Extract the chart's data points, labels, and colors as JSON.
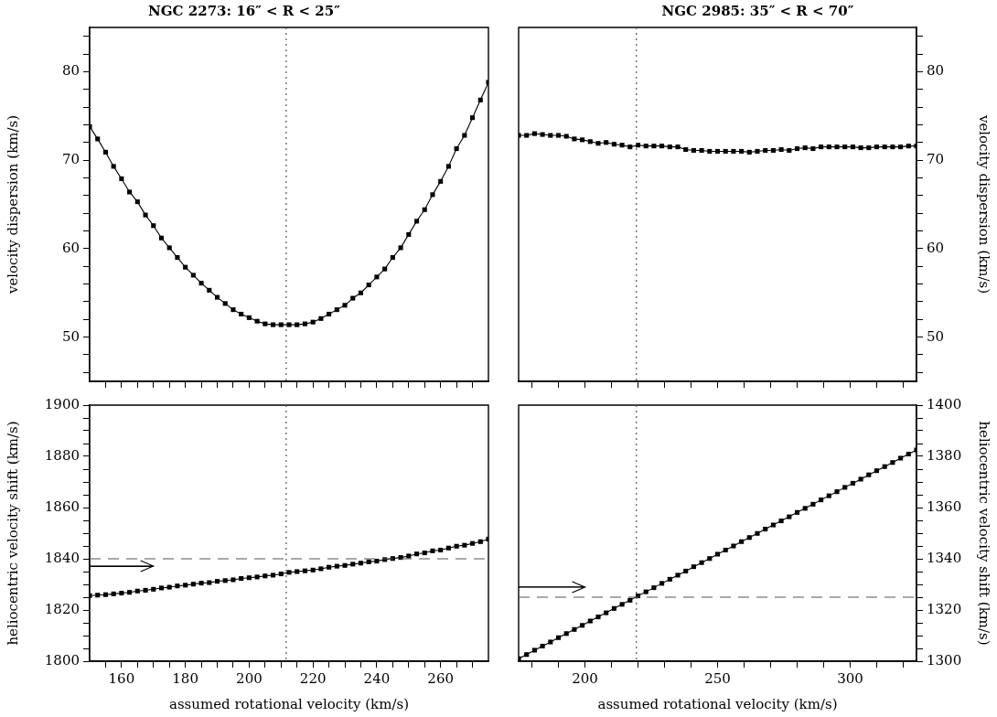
{
  "chart_data": [
    {
      "type": "line",
      "title": "NGC 2273: 16″ < R < 25″",
      "ylabel": "velocity dispersion (km/s)",
      "tick_labels": "y",
      "xlim": [
        150,
        275
      ],
      "ylim": [
        45,
        85
      ],
      "xticks": [
        {
          "value": 155,
          "label": null
        },
        {
          "value": 160,
          "label": null
        },
        {
          "value": 165,
          "label": null
        },
        {
          "value": 170,
          "label": null
        },
        {
          "value": 175,
          "label": null
        },
        {
          "value": 180,
          "label": null
        },
        {
          "value": 185,
          "label": null
        },
        {
          "value": 190,
          "label": null
        },
        {
          "value": 195,
          "label": null
        },
        {
          "value": 200,
          "label": null
        },
        {
          "value": 205,
          "label": null
        },
        {
          "value": 210,
          "label": null
        },
        {
          "value": 215,
          "label": null
        },
        {
          "value": 220,
          "label": null
        },
        {
          "value": 225,
          "label": null
        },
        {
          "value": 230,
          "label": null
        },
        {
          "value": 235,
          "label": null
        },
        {
          "value": 240,
          "label": null
        },
        {
          "value": 245,
          "label": null
        },
        {
          "value": 250,
          "label": null
        },
        {
          "value": 255,
          "label": null
        },
        {
          "value": 260,
          "label": null
        },
        {
          "value": 265,
          "label": null
        },
        {
          "value": 270,
          "label": null
        }
      ],
      "yticks": [
        {
          "value": 46,
          "label": null
        },
        {
          "value": 48,
          "label": null
        },
        50,
        {
          "value": 52,
          "label": null
        },
        {
          "value": 54,
          "label": null
        },
        {
          "value": 56,
          "label": null
        },
        {
          "value": 58,
          "label": null
        },
        60,
        {
          "value": 62,
          "label": null
        },
        {
          "value": 64,
          "label": null
        },
        {
          "value": 66,
          "label": null
        },
        {
          "value": 68,
          "label": null
        },
        70,
        {
          "value": 72,
          "label": null
        },
        {
          "value": 74,
          "label": null
        },
        {
          "value": 76,
          "label": null
        },
        {
          "value": 78,
          "label": null
        },
        80,
        {
          "value": 82,
          "label": null
        },
        {
          "value": 84,
          "label": null
        }
      ],
      "x": [
        150,
        152.5,
        155,
        157.5,
        160,
        162.5,
        165,
        167.5,
        170,
        172.5,
        175,
        177.5,
        180,
        182.5,
        185,
        187.5,
        190,
        192.5,
        195,
        197.5,
        200,
        202.5,
        205,
        207.5,
        210,
        212.5,
        215,
        217.5,
        220,
        222.5,
        225,
        227.5,
        230,
        232.5,
        235,
        237.5,
        240,
        242.5,
        245,
        247.5,
        250,
        252.5,
        255,
        257.5,
        260,
        262.5,
        265,
        267.5,
        270,
        272.5,
        275
      ],
      "series": [
        {
          "color": "#000000",
          "marker": "square",
          "values": [
            73.8,
            72.4,
            70.9,
            69.3,
            67.9,
            66.4,
            65.3,
            63.8,
            62.6,
            61.2,
            60.1,
            59.0,
            57.9,
            57.0,
            56.1,
            55.3,
            54.5,
            53.8,
            53.1,
            52.6,
            52.2,
            51.8,
            51.5,
            51.4,
            51.4,
            51.4,
            51.4,
            51.5,
            51.7,
            52.1,
            52.6,
            53.1,
            53.6,
            54.4,
            55.0,
            55.9,
            56.8,
            57.7,
            59.0,
            60.1,
            61.6,
            63.1,
            64.4,
            66.1,
            67.6,
            69.3,
            71.3,
            72.8,
            74.8,
            76.8,
            78.8
          ]
        }
      ],
      "ref_lines": [
        {
          "axis": "x",
          "value": 211.6,
          "line_style": "dotted",
          "color": "#555555"
        }
      ]
    },
    {
      "type": "line",
      "title": "NGC 2985: 35″ < R < 70″",
      "y2label": "velocity dispersion (km/s)",
      "tick_labels": "y",
      "xlim": [
        175,
        325
      ],
      "y2lim": [
        45,
        85
      ],
      "xticks": [
        {
          "value": 180,
          "label": null
        },
        {
          "value": 190,
          "label": null
        },
        {
          "value": 200,
          "label": null
        },
        {
          "value": 210,
          "label": null
        },
        {
          "value": 220,
          "label": null
        },
        {
          "value": 230,
          "label": null
        },
        {
          "value": 240,
          "label": null
        },
        {
          "value": 250,
          "label": null
        },
        {
          "value": 260,
          "label": null
        },
        {
          "value": 270,
          "label": null
        },
        {
          "value": 280,
          "label": null
        },
        {
          "value": 290,
          "label": null
        },
        {
          "value": 300,
          "label": null
        },
        {
          "value": 310,
          "label": null
        },
        {
          "value": 320,
          "label": null
        }
      ],
      "y2ticks": [
        {
          "value": 46,
          "label": null
        },
        {
          "value": 48,
          "label": null
        },
        50,
        {
          "value": 52,
          "label": null
        },
        {
          "value": 54,
          "label": null
        },
        {
          "value": 56,
          "label": null
        },
        {
          "value": 58,
          "label": null
        },
        60,
        {
          "value": 62,
          "label": null
        },
        {
          "value": 64,
          "label": null
        },
        {
          "value": 66,
          "label": null
        },
        {
          "value": 68,
          "label": null
        },
        70,
        {
          "value": 72,
          "label": null
        },
        {
          "value": 74,
          "label": null
        },
        {
          "value": 76,
          "label": null
        },
        {
          "value": 78,
          "label": null
        },
        80,
        {
          "value": 82,
          "label": null
        },
        {
          "value": 84,
          "label": null
        }
      ],
      "x": [
        175,
        178,
        181,
        184,
        187,
        190,
        193,
        196,
        199,
        202,
        205,
        208,
        211,
        214,
        217,
        220,
        223,
        226,
        229,
        232,
        235,
        238,
        241,
        244,
        247,
        250,
        253,
        256,
        259,
        262,
        265,
        268,
        271,
        274,
        277,
        280,
        283,
        286,
        289,
        292,
        295,
        298,
        301,
        304,
        307,
        310,
        313,
        316,
        319,
        322,
        325
      ],
      "series": [
        {
          "axis": "y2",
          "color": "#000000",
          "marker": "square",
          "values": [
            72.8,
            72.8,
            73.0,
            72.9,
            72.8,
            72.8,
            72.7,
            72.4,
            72.3,
            72.1,
            71.9,
            72.0,
            71.8,
            71.7,
            71.5,
            71.7,
            71.6,
            71.6,
            71.6,
            71.5,
            71.5,
            71.2,
            71.1,
            71.1,
            71.0,
            71.0,
            71.0,
            71.0,
            71.0,
            70.9,
            71.0,
            71.1,
            71.1,
            71.2,
            71.1,
            71.3,
            71.4,
            71.3,
            71.5,
            71.5,
            71.5,
            71.5,
            71.5,
            71.4,
            71.4,
            71.5,
            71.5,
            71.5,
            71.5,
            71.6,
            71.6
          ]
        }
      ],
      "ref_lines": [
        {
          "axis": "x",
          "value": 219.4,
          "line_style": "dotted",
          "color": "#555555"
        }
      ]
    },
    {
      "type": "line",
      "xlabel": "assumed rotational velocity (km/s)",
      "ylabel": "heliocentric velocity shift (km/s)",
      "xlim": [
        150,
        275
      ],
      "ylim": [
        1800,
        1900
      ],
      "xticks": [
        {
          "value": 155,
          "label": null
        },
        160,
        {
          "value": 165,
          "label": null
        },
        {
          "value": 170,
          "label": null
        },
        {
          "value": 175,
          "label": null
        },
        180,
        {
          "value": 185,
          "label": null
        },
        {
          "value": 190,
          "label": null
        },
        {
          "value": 195,
          "label": null
        },
        200,
        {
          "value": 205,
          "label": null
        },
        {
          "value": 210,
          "label": null
        },
        {
          "value": 215,
          "label": null
        },
        220,
        {
          "value": 225,
          "label": null
        },
        {
          "value": 230,
          "label": null
        },
        {
          "value": 235,
          "label": null
        },
        240,
        {
          "value": 245,
          "label": null
        },
        {
          "value": 250,
          "label": null
        },
        {
          "value": 255,
          "label": null
        },
        260,
        {
          "value": 265,
          "label": null
        },
        {
          "value": 270,
          "label": null
        }
      ],
      "yticks": [
        1800,
        {
          "value": 1805,
          "label": null
        },
        {
          "value": 1810,
          "label": null
        },
        {
          "value": 1815,
          "label": null
        },
        1820,
        {
          "value": 1825,
          "label": null
        },
        {
          "value": 1830,
          "label": null
        },
        {
          "value": 1835,
          "label": null
        },
        1840,
        {
          "value": 1845,
          "label": null
        },
        {
          "value": 1850,
          "label": null
        },
        {
          "value": 1855,
          "label": null
        },
        1860,
        {
          "value": 1865,
          "label": null
        },
        {
          "value": 1870,
          "label": null
        },
        {
          "value": 1875,
          "label": null
        },
        1880,
        {
          "value": 1885,
          "label": null
        },
        {
          "value": 1890,
          "label": null
        },
        {
          "value": 1895,
          "label": null
        },
        1900
      ],
      "x": [
        150,
        152.5,
        155,
        157.5,
        160,
        162.5,
        165,
        167.5,
        170,
        172.5,
        175,
        177.5,
        180,
        182.5,
        185,
        187.5,
        190,
        192.5,
        195,
        197.5,
        200,
        202.5,
        205,
        207.5,
        210,
        212.5,
        215,
        217.5,
        220,
        222.5,
        225,
        227.5,
        230,
        232.5,
        235,
        237.5,
        240,
        242.5,
        245,
        247.5,
        250,
        252.5,
        255,
        257.5,
        260,
        262.5,
        265,
        267.5,
        270,
        272.5,
        275
      ],
      "series": [
        {
          "color": "#000000",
          "marker": "square",
          "values": [
            1825.6,
            1825.8,
            1826.0,
            1826.3,
            1826.6,
            1826.9,
            1827.4,
            1827.7,
            1828.1,
            1828.6,
            1828.9,
            1829.4,
            1829.7,
            1830.1,
            1830.5,
            1830.7,
            1831.2,
            1831.5,
            1831.8,
            1832.3,
            1832.6,
            1832.9,
            1833.3,
            1833.6,
            1834.1,
            1834.7,
            1835.0,
            1835.3,
            1835.6,
            1836.1,
            1836.7,
            1837.1,
            1837.4,
            1837.9,
            1838.3,
            1838.8,
            1839.1,
            1839.7,
            1840.1,
            1840.5,
            1841.1,
            1841.9,
            1842.3,
            1843.1,
            1843.4,
            1844.2,
            1844.9,
            1845.3,
            1846.0,
            1846.7,
            1847.7
          ]
        },
        {
          "color": "#000000",
          "marker": "none",
          "x": [
            150,
            170
          ],
          "values": [
            1837,
            1837
          ]
        }
      ],
      "ref_lines": [
        {
          "axis": "x",
          "value": 211.6,
          "line_style": "dotted",
          "color": "#555555"
        },
        {
          "axis": "y",
          "value": 1840,
          "line_style": "dashed",
          "color": "#555555"
        }
      ]
    },
    {
      "type": "line",
      "xlabel": "assumed rotational velocity (km/s)",
      "y2label": "heliocentric velocity shift (km/s)",
      "xlim": [
        175,
        325
      ],
      "y2lim": [
        1300,
        1400
      ],
      "xticks": [
        {
          "value": 180,
          "label": null
        },
        {
          "value": 190,
          "label": null
        },
        200,
        {
          "value": 210,
          "label": null
        },
        {
          "value": 220,
          "label": null
        },
        {
          "value": 230,
          "label": null
        },
        {
          "value": 240,
          "label": null
        },
        250,
        {
          "value": 260,
          "label": null
        },
        {
          "value": 270,
          "label": null
        },
        {
          "value": 280,
          "label": null
        },
        {
          "value": 290,
          "label": null
        },
        300,
        {
          "value": 310,
          "label": null
        },
        {
          "value": 320,
          "label": null
        }
      ],
      "y2ticks": [
        1300,
        {
          "value": 1305,
          "label": null
        },
        {
          "value": 1310,
          "label": null
        },
        {
          "value": 1315,
          "label": null
        },
        1320,
        {
          "value": 1325,
          "label": null
        },
        {
          "value": 1330,
          "label": null
        },
        {
          "value": 1335,
          "label": null
        },
        1340,
        {
          "value": 1345,
          "label": null
        },
        {
          "value": 1350,
          "label": null
        },
        {
          "value": 1355,
          "label": null
        },
        1360,
        {
          "value": 1365,
          "label": null
        },
        {
          "value": 1370,
          "label": null
        },
        {
          "value": 1375,
          "label": null
        },
        1380,
        {
          "value": 1385,
          "label": null
        },
        {
          "value": 1390,
          "label": null
        },
        {
          "value": 1395,
          "label": null
        },
        1400
      ],
      "x": [
        175,
        178,
        181,
        184,
        187,
        190,
        193,
        196,
        199,
        202,
        205,
        208,
        211,
        214,
        217,
        220,
        223,
        226,
        229,
        232,
        235,
        238,
        241,
        244,
        247,
        250,
        253,
        256,
        259,
        262,
        265,
        268,
        271,
        274,
        277,
        280,
        283,
        286,
        289,
        292,
        295,
        298,
        301,
        304,
        307,
        310,
        313,
        316,
        319,
        322,
        325
      ],
      "series": [
        {
          "axis": "y2",
          "color": "#000000",
          "marker": "square",
          "values": [
            1301.0,
            1302.6,
            1304.3,
            1305.9,
            1307.5,
            1309.2,
            1310.8,
            1312.4,
            1314.0,
            1315.7,
            1317.3,
            1318.9,
            1320.6,
            1322.2,
            1323.8,
            1325.5,
            1327.1,
            1328.7,
            1330.4,
            1332.0,
            1333.6,
            1335.2,
            1336.9,
            1338.5,
            1340.1,
            1341.8,
            1343.4,
            1345.0,
            1346.7,
            1348.3,
            1349.9,
            1351.6,
            1353.2,
            1354.8,
            1356.4,
            1358.1,
            1359.7,
            1361.3,
            1363.0,
            1364.6,
            1366.2,
            1367.9,
            1369.5,
            1371.1,
            1372.8,
            1374.4,
            1376.0,
            1377.6,
            1379.3,
            1380.9,
            1382.5
          ]
        },
        {
          "axis": "y2",
          "color": "#000000",
          "marker": "none",
          "x": [
            175,
            200
          ],
          "values": [
            1329,
            1329
          ]
        }
      ],
      "ref_lines": [
        {
          "axis": "x",
          "value": 219.4,
          "line_style": "dotted",
          "color": "#555555"
        },
        {
          "axis": "y2",
          "value": 1325,
          "line_style": "dashed",
          "color": "#555555"
        }
      ]
    }
  ]
}
